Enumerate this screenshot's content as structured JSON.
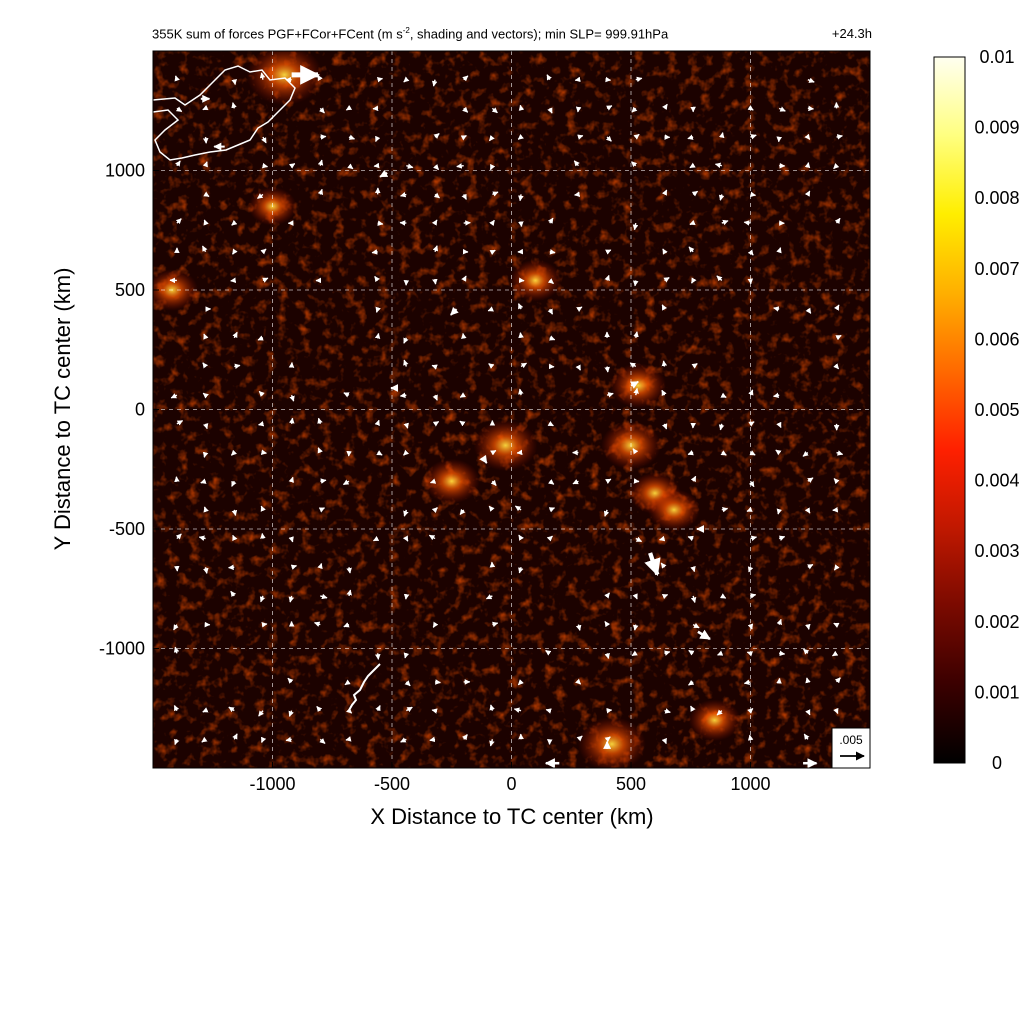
{
  "title_left": "355K sum of forces PGF+FCor+FCent (m s",
  "title_sup": "-2",
  "title_rest": ", shading and vectors); min SLP= 999.91hPa",
  "title_right": "+24.3h",
  "chart_data": {
    "type": "heatmap",
    "title": "355K sum of forces PGF+FCor+FCent (m s-2, shading and vectors); min SLP= 999.91hPa",
    "valid_time": "+24.3h",
    "min_slp_hpa": 999.91,
    "xlabel": "X Distance to TC center (km)",
    "ylabel": "Y Distance to TC center (km)",
    "xlim": [
      -1500,
      1500
    ],
    "ylim": [
      -1500,
      1500
    ],
    "x_ticks": [
      -1000,
      -500,
      0,
      500,
      1000
    ],
    "y_ticks": [
      1000,
      500,
      0,
      -500,
      -1000
    ],
    "x_tick_labels": [
      "-1000",
      "-500",
      "0",
      "500",
      "1000"
    ],
    "y_tick_labels": [
      "1000",
      "500",
      "0",
      "-500",
      "-1000"
    ],
    "grid": true,
    "colorbar": {
      "min": 0,
      "max": 0.01,
      "ticks": [
        "0.01",
        "0.009",
        "0.008",
        "0.007",
        "0.006",
        "0.005",
        "0.004",
        "0.003",
        "0.002",
        "0.001",
        "0"
      ],
      "colormap": [
        "#000000",
        "#3a0000",
        "#7a0a00",
        "#c01800",
        "#ff2000",
        "#ff6a00",
        "#ffb000",
        "#ffee00",
        "#ffff80",
        "#fffff0"
      ]
    },
    "reference_vector": {
      "label": ".005",
      "value": 0.005
    },
    "hotspots": [
      {
        "x": -25,
        "y": -150,
        "value": 0.0045
      },
      {
        "x": -250,
        "y": -300,
        "value": 0.0035
      },
      {
        "x": 500,
        "y": -150,
        "value": 0.004
      },
      {
        "x": 530,
        "y": 100,
        "value": 0.0035
      },
      {
        "x": 600,
        "y": -350,
        "value": 0.003
      },
      {
        "x": 420,
        "y": -1400,
        "value": 0.005
      },
      {
        "x": -950,
        "y": 1400,
        "value": 0.006
      },
      {
        "x": 100,
        "y": 540,
        "value": 0.003
      },
      {
        "x": 850,
        "y": -1300,
        "value": 0.003
      },
      {
        "x": -1420,
        "y": 500,
        "value": 0.003
      },
      {
        "x": -1000,
        "y": 850,
        "value": 0.0025
      },
      {
        "x": 680,
        "y": -420,
        "value": 0.003
      }
    ],
    "vectors_large": [
      {
        "x": -920,
        "y": 1400,
        "u": 0.0055,
        "v": 0.0,
        "unit": "m s-2"
      },
      {
        "x": 580,
        "y": -600,
        "u": 0.0015,
        "v": -0.0045,
        "unit": "m s-2"
      },
      {
        "x": 780,
        "y": -930,
        "u": 0.0025,
        "v": -0.0015,
        "unit": "m s-2"
      },
      {
        "x": -230,
        "y": 420,
        "u": -0.0012,
        "v": -0.0012,
        "unit": "m s-2"
      },
      {
        "x": -520,
        "y": 990,
        "u": -0.0015,
        "v": -0.0008,
        "unit": "m s-2"
      },
      {
        "x": -1200,
        "y": 1100,
        "u": -0.0022,
        "v": 0.0,
        "unit": "m s-2"
      },
      {
        "x": 500,
        "y": 100,
        "u": 0.0015,
        "v": 0.0008,
        "unit": "m s-2"
      },
      {
        "x": -120,
        "y": -200,
        "u": 0.0008,
        "v": -0.0012,
        "unit": "m s-2"
      },
      {
        "x": 200,
        "y": -1480,
        "u": -0.0028,
        "v": 0.0,
        "unit": "m s-2"
      },
      {
        "x": 1220,
        "y": -1480,
        "u": 0.0028,
        "v": 0.0,
        "unit": "m s-2"
      },
      {
        "x": 400,
        "y": -1420,
        "u": 0.0,
        "v": 0.0015,
        "unit": "m s-2"
      },
      {
        "x": -480,
        "y": 90,
        "u": -0.0012,
        "v": 0.0,
        "unit": "m s-2"
      },
      {
        "x": 800,
        "y": -500,
        "u": -0.0012,
        "v": 0.0,
        "unit": "m s-2"
      },
      {
        "x": -1300,
        "y": 1300,
        "u": 0.0018,
        "v": 0.0,
        "unit": "m s-2"
      }
    ]
  }
}
